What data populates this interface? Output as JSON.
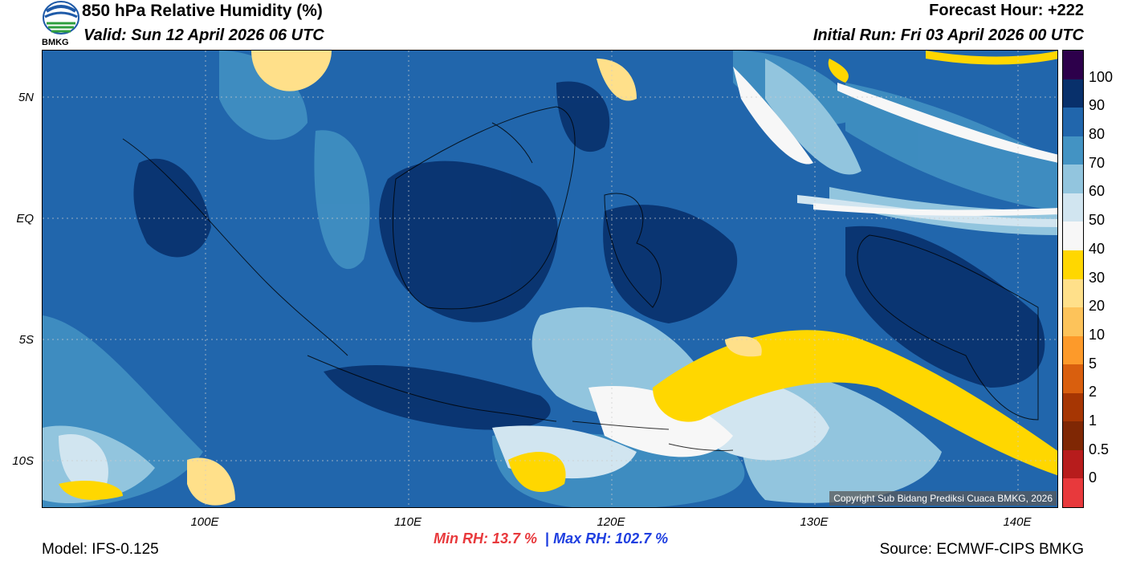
{
  "header": {
    "title": "850 hPa Relative Humidity (%)",
    "valid": "Valid: Sun 12 April 2026 06 UTC",
    "forecast_hour": "Forecast Hour: +222",
    "initial_run": "Initial Run: Fri 03 April 2026 00 UTC"
  },
  "logo": {
    "text": "BMKG"
  },
  "map": {
    "lat_labels": [
      "5N",
      "EQ",
      "5S",
      "10S"
    ],
    "lon_labels": [
      "100E",
      "110E",
      "120E",
      "130E",
      "140E"
    ],
    "copyright": "Copyright Sub Bidang Prediksi Cuaca BMKG, 2026",
    "colors": {
      "very_humid": "#08306b",
      "humid": "#2166ac",
      "mid_blue": "#4393c3",
      "light_blue": "#92c5de",
      "pale": "#d1e5f0",
      "white": "#f7f7f7",
      "yellow": "#ffd700"
    }
  },
  "colorbar": {
    "labels": [
      "100",
      "90",
      "80",
      "70",
      "60",
      "50",
      "40",
      "30",
      "20",
      "10",
      "5",
      "2",
      "1",
      "0.5",
      "0"
    ],
    "colors": [
      "#2d004b",
      "#08306b",
      "#2166ac",
      "#4393c3",
      "#92c5de",
      "#d1e5f0",
      "#f7f7f7",
      "#ffd700",
      "#ffe08a",
      "#fdc35a",
      "#fd9a2a",
      "#d95f0e",
      "#a63603",
      "#7f2704",
      "#b71c1c",
      "#e8393c"
    ]
  },
  "footer": {
    "model": "Model: IFS-0.125",
    "min_rh": "Min RH:  13.7 %",
    "separator": "|",
    "max_rh": "Max RH: 102.7 %",
    "source": "Source: ECMWF-CIPS BMKG"
  }
}
